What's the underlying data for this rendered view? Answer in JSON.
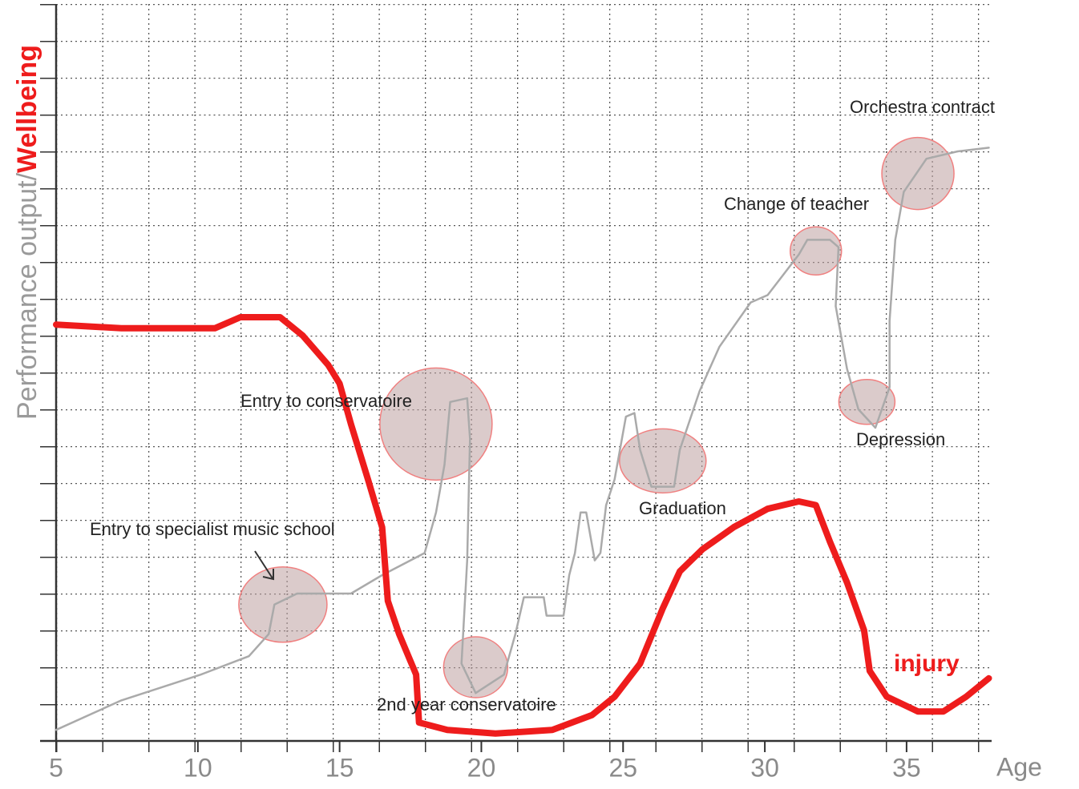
{
  "chart_data": {
    "type": "line",
    "ylabel": [
      "Performance output/",
      "Wellbeing"
    ],
    "xlabel": "Age",
    "xlim": [
      5,
      38
    ],
    "xticks": [
      5,
      10,
      15,
      20,
      25,
      30,
      35
    ],
    "ylim": [
      0,
      20
    ],
    "series": [
      {
        "color": "#ee1c1c",
        "x": [
          5.0,
          7.3,
          10.6,
          11.5,
          12.9,
          13.7,
          14.6,
          15.0,
          15.4,
          16.0,
          16.5,
          16.7,
          17.1,
          17.7,
          17.8,
          18.8,
          20.5,
          22.5,
          23.9,
          24.7,
          25.6,
          26.4,
          27.0,
          27.8,
          28.9,
          30.1,
          31.2,
          31.8,
          32.3,
          32.9,
          33.5,
          33.7,
          34.3,
          35.4,
          36.3,
          37.1,
          37.9
        ],
        "values": [
          11.3,
          11.2,
          11.2,
          11.5,
          11.5,
          11.0,
          10.2,
          9.7,
          8.6,
          7.1,
          5.8,
          3.8,
          2.9,
          1.8,
          0.5,
          0.3,
          0.2,
          0.3,
          0.7,
          1.2,
          2.1,
          3.6,
          4.6,
          5.2,
          5.8,
          6.3,
          6.5,
          6.4,
          5.4,
          4.3,
          3.0,
          1.9,
          1.2,
          0.8,
          0.8,
          1.2,
          1.7
        ]
      },
      {
        "color": "#aaaaaa",
        "x": [
          5.0,
          7.3,
          10.1,
          11.8,
          12.5,
          12.7,
          13.5,
          15.4,
          16.5,
          18.0,
          18.4,
          18.7,
          18.9,
          19.5,
          19.6,
          19.5,
          19.3,
          19.8,
          20.8,
          21.2,
          21.5,
          22.2,
          22.3,
          22.9,
          23.1,
          23.3,
          23.5,
          23.7,
          24.0,
          24.2,
          24.4,
          24.7,
          25.1,
          25.4,
          25.6,
          26.0,
          26.8,
          27.0,
          27.7,
          28.4,
          29.5,
          30.1,
          30.6,
          31.2,
          31.5,
          32.3,
          32.6,
          32.5,
          32.9,
          33.3,
          33.9,
          34.4,
          34.4,
          34.6,
          34.9,
          35.7,
          36.8,
          37.9
        ],
        "values": [
          0.3,
          1.1,
          1.8,
          2.3,
          2.9,
          3.7,
          4.0,
          4.0,
          4.5,
          5.1,
          6.2,
          7.5,
          9.2,
          9.3,
          8.2,
          4.9,
          2.1,
          1.3,
          1.8,
          2.9,
          3.9,
          3.9,
          3.4,
          3.4,
          4.5,
          5.1,
          6.2,
          6.2,
          4.9,
          5.1,
          6.4,
          7.1,
          8.8,
          8.9,
          7.9,
          6.9,
          6.9,
          7.9,
          9.5,
          10.7,
          11.9,
          12.1,
          12.6,
          13.2,
          13.6,
          13.6,
          13.4,
          11.8,
          10.1,
          9.0,
          8.5,
          9.6,
          11.4,
          13.6,
          14.9,
          15.8,
          16.0,
          16.1
        ]
      }
    ],
    "annotations": [
      {
        "text": "Entry to specialist music school",
        "x": 13.0,
        "y": 3.7
      },
      {
        "text": "Entry to conservatoire",
        "x": 18.4,
        "y": 8.6
      },
      {
        "text": "2nd year conservatoire",
        "x": 19.8,
        "y": 2.0
      },
      {
        "text": "Graduation",
        "x": 26.4,
        "y": 7.6
      },
      {
        "text": "Change of teacher",
        "x": 31.8,
        "y": 13.3
      },
      {
        "text": "Depression",
        "x": 33.6,
        "y": 9.2
      },
      {
        "text": "Orchestra contract",
        "x": 35.4,
        "y": 15.4
      }
    ],
    "injury_label": "injury"
  }
}
